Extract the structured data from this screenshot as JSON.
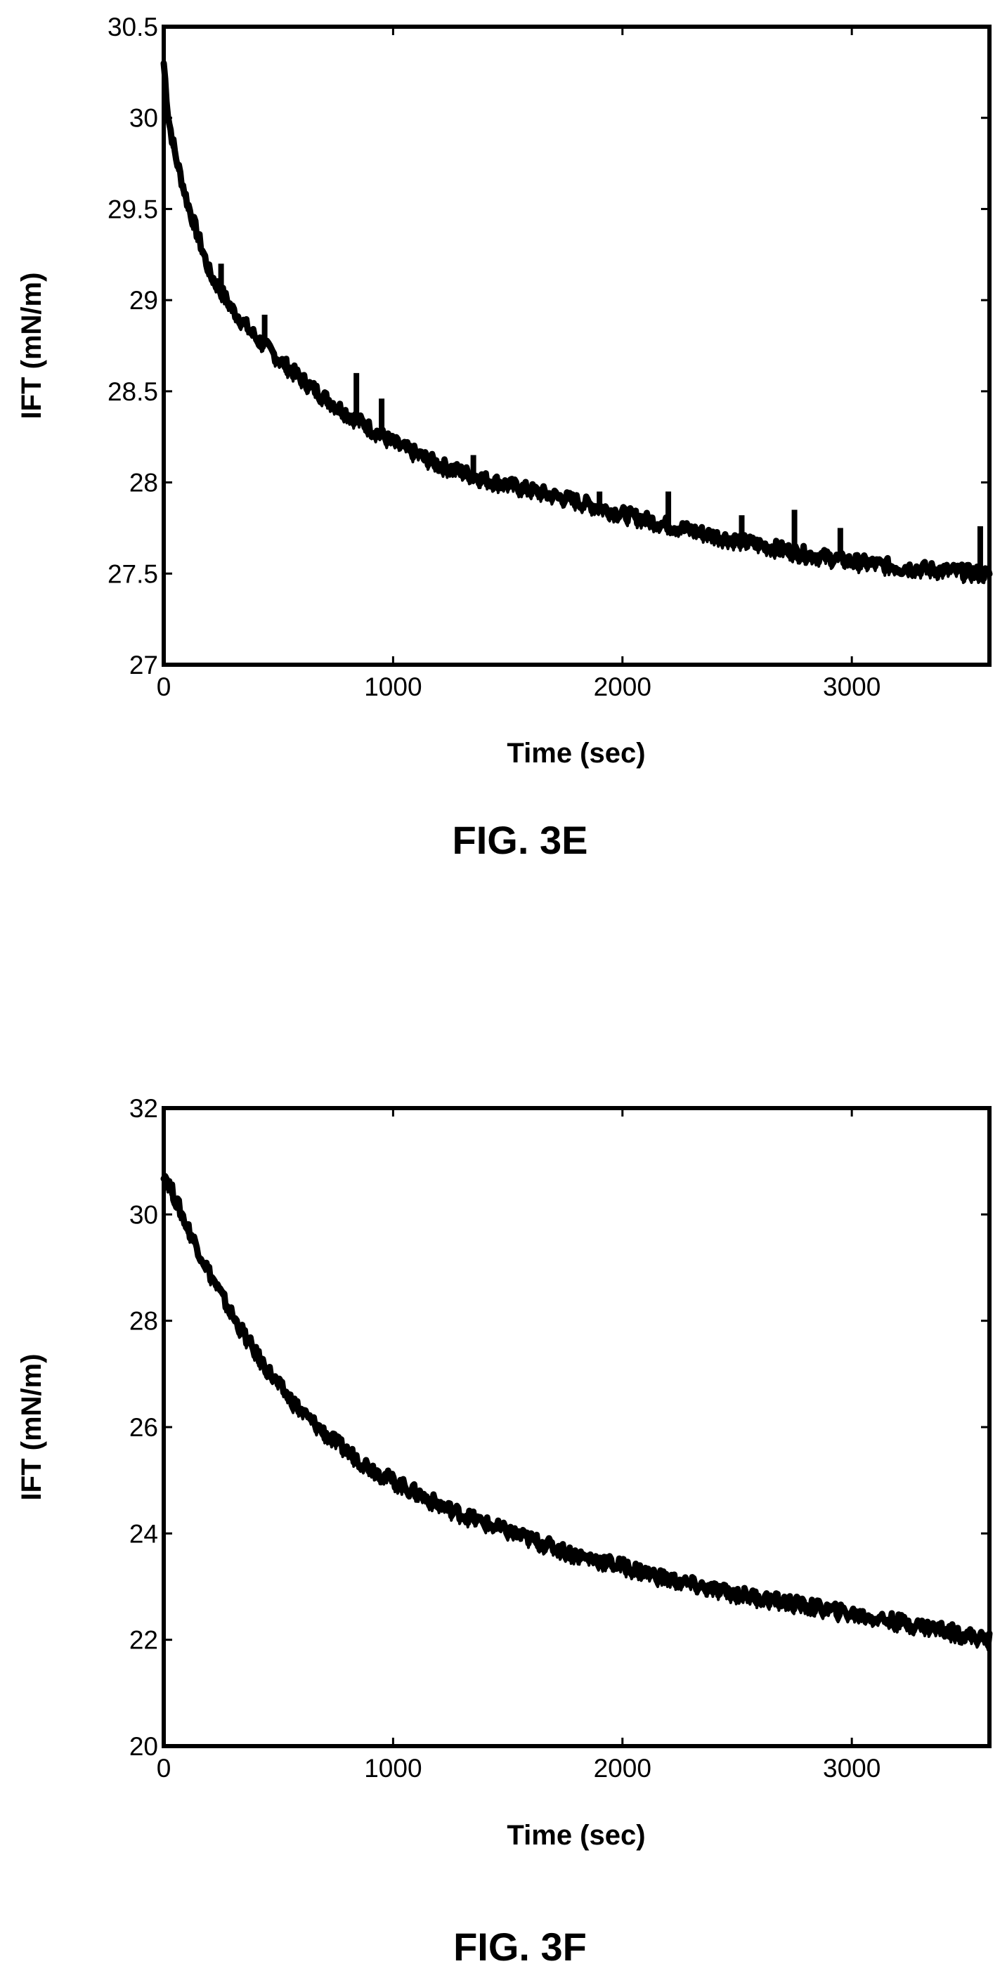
{
  "chart_data": [
    {
      "type": "line",
      "figure_label": "FIG. 3E",
      "xlabel": "Time (sec)",
      "ylabel": "IFT (mN/m)",
      "xlim": [
        0,
        3600
      ],
      "ylim": [
        27,
        30.5
      ],
      "x_ticks": [
        0,
        1000,
        2000,
        3000
      ],
      "y_ticks": [
        27,
        27.5,
        28,
        28.5,
        29,
        29.5,
        30,
        30.5
      ],
      "x_tick_labels": [
        "0",
        "1000",
        "2000",
        "3000"
      ],
      "y_tick_labels": [
        "27",
        "27.5",
        "28",
        "28.5",
        "29",
        "29.5",
        "30",
        "30.5"
      ],
      "grid": false,
      "series": [
        {
          "x": [
            0,
            20,
            50,
            100,
            150,
            200,
            300,
            400,
            500,
            600,
            700,
            800,
            900,
            1000,
            1200,
            1400,
            1600,
            1800,
            2000,
            2200,
            2400,
            2600,
            2800,
            3000,
            3200,
            3400,
            3600
          ],
          "values": [
            30.3,
            30.0,
            29.8,
            29.55,
            29.35,
            29.15,
            28.95,
            28.8,
            28.68,
            28.57,
            28.47,
            28.38,
            28.3,
            28.22,
            28.1,
            28.02,
            27.96,
            27.9,
            27.83,
            27.77,
            27.71,
            27.66,
            27.61,
            27.57,
            27.54,
            27.52,
            27.5
          ]
        }
      ],
      "spikes": [
        {
          "x": 250,
          "y": 29.2
        },
        {
          "x": 440,
          "y": 28.92
        },
        {
          "x": 840,
          "y": 28.6
        },
        {
          "x": 950,
          "y": 28.46
        },
        {
          "x": 1350,
          "y": 28.15
        },
        {
          "x": 1900,
          "y": 27.95
        },
        {
          "x": 2200,
          "y": 27.95
        },
        {
          "x": 2520,
          "y": 27.82
        },
        {
          "x": 2750,
          "y": 27.85
        },
        {
          "x": 2950,
          "y": 27.75
        },
        {
          "x": 3560,
          "y": 27.76
        }
      ]
    },
    {
      "type": "line",
      "figure_label": "FIG. 3F",
      "xlabel": "Time (sec)",
      "ylabel": "IFT (mN/m)",
      "xlim": [
        0,
        3600
      ],
      "ylim": [
        20,
        32
      ],
      "x_ticks": [
        0,
        1000,
        2000,
        3000
      ],
      "y_ticks": [
        20,
        22,
        24,
        26,
        28,
        30,
        32
      ],
      "x_tick_labels": [
        "0",
        "1000",
        "2000",
        "3000"
      ],
      "y_tick_labels": [
        "20",
        "22",
        "24",
        "26",
        "28",
        "30",
        "32"
      ],
      "grid": false,
      "series": [
        {
          "x": [
            0,
            20,
            50,
            100,
            200,
            300,
            400,
            500,
            600,
            700,
            800,
            900,
            1000,
            1200,
            1400,
            1600,
            1800,
            2000,
            2200,
            2400,
            2600,
            2800,
            3000,
            3200,
            3400,
            3600
          ],
          "values": [
            30.8,
            30.6,
            30.3,
            29.8,
            28.9,
            28.1,
            27.4,
            26.8,
            26.3,
            25.9,
            25.55,
            25.25,
            25.0,
            24.55,
            24.2,
            23.9,
            23.6,
            23.4,
            23.15,
            22.95,
            22.8,
            22.65,
            22.5,
            22.35,
            22.2,
            22.0
          ]
        }
      ],
      "spikes": []
    }
  ]
}
